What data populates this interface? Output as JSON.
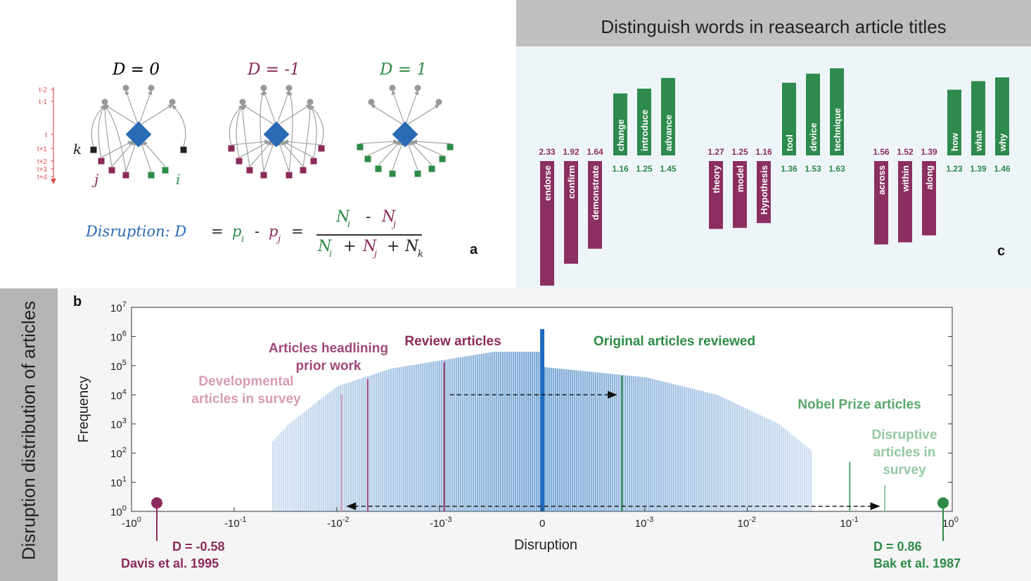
{
  "panel_a": {
    "letter": "a",
    "networks": [
      {
        "title": "D = 0",
        "color": "#333333"
      },
      {
        "title": "D = -1",
        "color": "#8b2a5a"
      },
      {
        "title": "D = 1",
        "color": "#2e8b47"
      }
    ],
    "time_labels": [
      "t-2",
      "t-1",
      "t",
      "t+1",
      "t+2",
      "t+3",
      "t+4"
    ],
    "node_labels": {
      "k": "k",
      "j": "j",
      "i": "i"
    },
    "formula": {
      "lead": "Disruption: D",
      "eq1": "=",
      "pi": "p",
      "pi_sub": "i",
      "minus": "-",
      "pj": "p",
      "pj_sub": "j",
      "eq2": "=",
      "num_ni": "N",
      "num_ni_sub": "i",
      "num_minus": "-",
      "num_nj": "N",
      "num_nj_sub": "j",
      "den_ni": "N",
      "den_ni_sub": "i",
      "den_plus1": "+",
      "den_nj": "N",
      "den_nj_sub": "j",
      "den_plus2": "+",
      "den_nk": "N",
      "den_nk_sub": "k"
    }
  },
  "panel_c": {
    "letter": "c",
    "title": "Distinguish words in reasearch article titles",
    "colors": {
      "developing": "#8b2f60",
      "disrupting": "#2e8b4d"
    },
    "groups": [
      {
        "developing": [
          {
            "word": "endorse",
            "value": 2.33,
            "label": "2.33"
          },
          {
            "word": "confirm",
            "value": 1.92,
            "label": "1.92"
          },
          {
            "word": "demonstrate",
            "value": 1.64,
            "label": "1.64"
          }
        ],
        "disrupting": [
          {
            "word": "change",
            "value": 1.16,
            "label": "1.16"
          },
          {
            "word": "introduce",
            "value": 1.25,
            "label": "1.25"
          },
          {
            "word": "advance",
            "value": 1.45,
            "label": "1.45"
          }
        ]
      },
      {
        "developing": [
          {
            "word": "theory",
            "value": 1.27,
            "label": "1.27"
          },
          {
            "word": "model",
            "value": 1.25,
            "label": "1.25"
          },
          {
            "word": "Hypothesis",
            "value": 1.16,
            "label": "1.16"
          }
        ],
        "disrupting": [
          {
            "word": "tool",
            "value": 1.36,
            "label": "1.36"
          },
          {
            "word": "device",
            "value": 1.53,
            "label": "1.53"
          },
          {
            "word": "technique",
            "value": 1.63,
            "label": "1.63"
          }
        ]
      },
      {
        "developing": [
          {
            "word": "across",
            "value": 1.56,
            "label": "1.56"
          },
          {
            "word": "within",
            "value": 1.52,
            "label": "1.52"
          },
          {
            "word": "along",
            "value": 1.39,
            "label": "1.39"
          }
        ],
        "disrupting": [
          {
            "word": "how",
            "value": 1.23,
            "label": "1.23"
          },
          {
            "word": "what",
            "value": 1.39,
            "label": "1.39"
          },
          {
            "word": "why",
            "value": 1.46,
            "label": "1.46"
          }
        ]
      }
    ]
  },
  "chart_data": {
    "type": "bar",
    "panel_letter": "b",
    "side_label": "Disruption distribution of articles",
    "xlabel": "Disruption",
    "ylabel": "Frequency",
    "y_scale": "log",
    "y_ticks": [
      {
        "base": "10",
        "exp": "0"
      },
      {
        "base": "10",
        "exp": "1"
      },
      {
        "base": "10",
        "exp": "2"
      },
      {
        "base": "10",
        "exp": "3"
      },
      {
        "base": "10",
        "exp": "4"
      },
      {
        "base": "10",
        "exp": "5"
      },
      {
        "base": "10",
        "exp": "6"
      },
      {
        "base": "10",
        "exp": "7"
      }
    ],
    "x_scale": "symmetric log",
    "x_ticks": [
      {
        "value": -1,
        "base": "-10",
        "exp": "0"
      },
      {
        "value": -0.1,
        "base": "-10",
        "exp": "-1"
      },
      {
        "value": -0.01,
        "base": "-10",
        "exp": "-2"
      },
      {
        "value": -0.001,
        "base": "-10",
        "exp": "-3"
      },
      {
        "value": 0,
        "base": "0",
        "exp": ""
      },
      {
        "value": 0.001,
        "base": "10",
        "exp": "-3"
      },
      {
        "value": 0.01,
        "base": "10",
        "exp": "-2"
      },
      {
        "value": 0.1,
        "base": "10",
        "exp": "-1"
      },
      {
        "value": 1,
        "base": "10",
        "exp": "0"
      }
    ],
    "ylim": [
      1,
      10000000
    ],
    "distribution": {
      "peak_at_zero": 1800000,
      "negative_side": [
        [
          -0.5,
          1
        ],
        [
          -0.1,
          10
        ],
        [
          -0.03,
          1000
        ],
        [
          -0.01,
          20000
        ],
        [
          -0.003,
          80000
        ],
        [
          -0.0003,
          300000
        ]
      ],
      "positive_side": [
        [
          0.0001,
          90000
        ],
        [
          0.001,
          40000
        ],
        [
          0.005,
          10000
        ],
        [
          0.02,
          1000
        ],
        [
          0.1,
          10
        ],
        [
          0.5,
          1
        ]
      ]
    },
    "markers": [
      {
        "label_lines": [
          "Review articles"
        ],
        "x": -0.0009,
        "freq": 130000,
        "color": "#8b2a5a"
      },
      {
        "label_lines": [
          "Articles headlining",
          "prior work"
        ],
        "x": -0.005,
        "freq": 35000,
        "color": "#a04878"
      },
      {
        "label_lines": [
          "Developmental",
          "articles in survey"
        ],
        "x": -0.009,
        "freq": 10000,
        "color": "#d89ab5"
      },
      {
        "label_lines": [
          "Original articles reviewed"
        ],
        "x": 0.0006,
        "freq": 45000,
        "color": "#2e8b47"
      },
      {
        "label_lines": [
          "Nobel Prize articles"
        ],
        "x": 0.1,
        "freq": 50,
        "color": "#59a86c"
      },
      {
        "label_lines": [
          "Disruptive",
          "articles in",
          "survey"
        ],
        "x": 0.22,
        "freq": 8,
        "color": "#93c8a3"
      }
    ],
    "extremes": [
      {
        "value": "D = -0.58",
        "citation": "Davis et al. 1995",
        "color": "#8b2a5a"
      },
      {
        "value": "D = 0.86",
        "citation": "Bak et al. 1987",
        "color": "#2e8b47"
      }
    ]
  }
}
